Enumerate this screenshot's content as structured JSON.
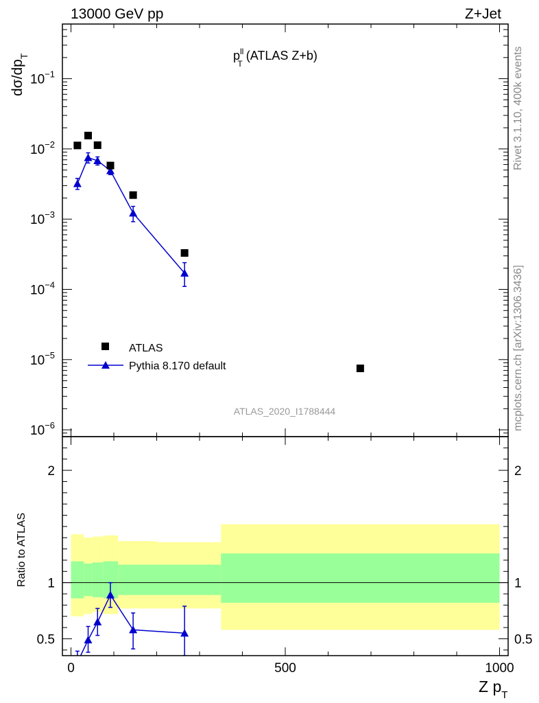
{
  "header": {
    "energy_label": "13000 GeV pp",
    "process_label": "Z+Jet"
  },
  "side_text": {
    "rivet": "Rivet 3.1.10,  400k events",
    "mcplots": "mcplots.cern.ch [arXiv:1306.3436]"
  },
  "colors": {
    "data": "#000000",
    "mc": "#0000cc",
    "band_inner": "#99ff99",
    "band_outer": "#ffff99"
  },
  "chart_data": {
    "type": "scatter",
    "title": {
      "main": "p",
      "sup": "ll",
      "sub": "T",
      "rest": " (ATLAS Z+b)"
    },
    "analysis_label": "ATLAS_2020_I1788444",
    "xlabel": {
      "main": "Z p",
      "sub": "T"
    },
    "ylabel": {
      "main": "dσ/dp",
      "sub": "T"
    },
    "ratio_ylabel": "Ratio to ATLAS",
    "xlim": [
      -20,
      1020
    ],
    "ylim": [
      8e-07,
      0.6
    ],
    "log_y": true,
    "x_ticks": [
      0,
      500,
      1000
    ],
    "x_tick_labels": [
      "0",
      "500",
      "1000"
    ],
    "y_ticks": [
      1e-06,
      1e-05,
      0.0001,
      0.001,
      0.01,
      0.1
    ],
    "y_tick_labels": [
      {
        "base": "10",
        "exp": "−6"
      },
      {
        "base": "10",
        "exp": "−5"
      },
      {
        "base": "10",
        "exp": "−4"
      },
      {
        "base": "10",
        "exp": "−3"
      },
      {
        "base": "10",
        "exp": "−2"
      },
      {
        "base": "10",
        "exp": "−1"
      }
    ],
    "ratio_ylim": [
      0.35,
      2.3
    ],
    "ratio_y_ticks": [
      0.5,
      1,
      2
    ],
    "ratio_y_tick_labels": [
      "0.5",
      "1",
      "2"
    ],
    "legend": {
      "placement": "lower-left",
      "entries": [
        "ATLAS",
        "Pythia 8.170 default"
      ]
    },
    "series": [
      {
        "name": "ATLAS",
        "marker": "square",
        "x": [
          15,
          40,
          62,
          92,
          145,
          265,
          675
        ],
        "y": [
          0.0112,
          0.0155,
          0.0113,
          0.0058,
          0.0022,
          0.00033,
          7.5e-06
        ]
      },
      {
        "name": "Pythia 8.170 default",
        "marker": "triangle",
        "x": [
          15,
          40,
          62,
          92,
          145,
          265
        ],
        "y": [
          0.0032,
          0.0075,
          0.0068,
          0.0049,
          0.00122,
          0.00017
        ],
        "yerr_low": [
          0.00055,
          0.0012,
          0.0009,
          0.0006,
          0.0003,
          6e-05
        ],
        "yerr_high": [
          0.0006,
          0.0013,
          0.0009,
          0.0006,
          0.0003,
          7e-05
        ]
      }
    ],
    "ratio": {
      "x": [
        15,
        40,
        62,
        92,
        145,
        265
      ],
      "y": [
        0.29,
        0.49,
        0.65,
        0.89,
        0.58,
        0.55
      ],
      "yerr_low": [
        0.1,
        0.11,
        0.12,
        0.11,
        0.17,
        0.2
      ],
      "yerr_high": [
        0.1,
        0.12,
        0.12,
        0.11,
        0.15,
        0.24
      ]
    },
    "bands": [
      {
        "x0": 0,
        "x1": 30,
        "inner": [
          0.86,
          1.19
        ],
        "outer": [
          0.7,
          1.43
        ]
      },
      {
        "x0": 30,
        "x1": 50,
        "inner": [
          0.88,
          1.17
        ],
        "outer": [
          0.72,
          1.4
        ]
      },
      {
        "x0": 50,
        "x1": 75,
        "inner": [
          0.87,
          1.18
        ],
        "outer": [
          0.74,
          1.41
        ]
      },
      {
        "x0": 75,
        "x1": 110,
        "inner": [
          0.86,
          1.19
        ],
        "outer": [
          0.72,
          1.42
        ]
      },
      {
        "x0": 110,
        "x1": 200,
        "inner": [
          0.89,
          1.16
        ],
        "outer": [
          0.77,
          1.37
        ]
      },
      {
        "x0": 200,
        "x1": 350,
        "inner": [
          0.89,
          1.16
        ],
        "outer": [
          0.77,
          1.36
        ]
      },
      {
        "x0": 350,
        "x1": 1000,
        "inner": [
          0.82,
          1.26
        ],
        "outer": [
          0.58,
          1.52
        ]
      }
    ]
  }
}
